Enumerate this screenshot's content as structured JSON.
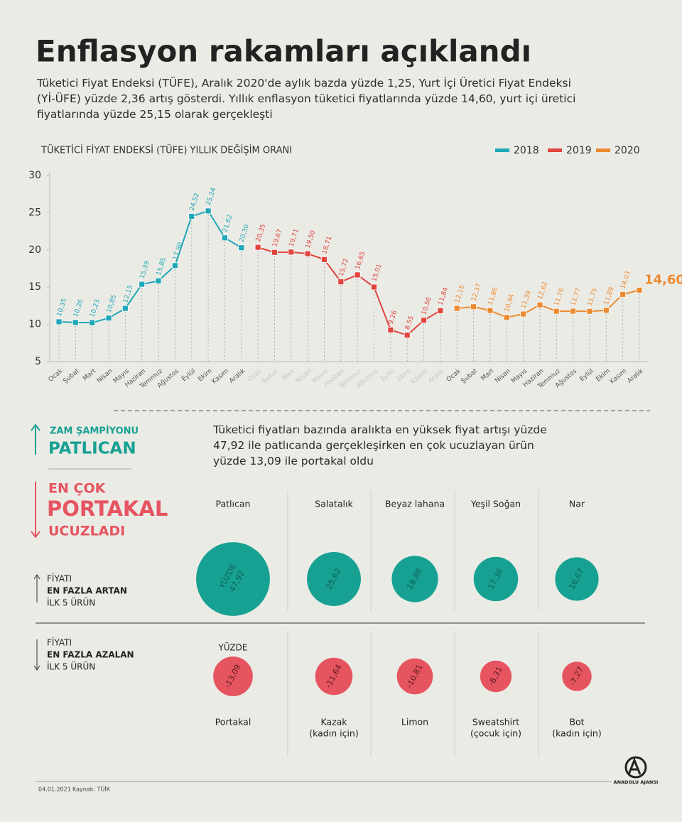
{
  "title": "Enflasyon rakamları açıklandı",
  "intro": "Tüketici Fiyat Endeksi (TÜFE), Aralık 2020'de aylık bazda yüzde 1,25, Yurt İçi Üretici Fiyat Endeksi (Yİ-ÜFE) yüzde 2,36 artış gösterdi. Yıllık enflasyon tüketici fiyatlarında yüzde 14,60, yurt içi üretici fiyatlarında yüzde 25,15 olarak gerçekleşti",
  "chart_data": {
    "type": "line",
    "title": "TÜKETİCİ FİYAT ENDEKSİ (TÜFE) YILLIK DEĞİŞİM ORANI",
    "categories": [
      "Ocak",
      "Şubat",
      "Mart",
      "Nisan",
      "Mayıs",
      "Haziran",
      "Temmuz",
      "Ağustos",
      "Eylül",
      "Ekim",
      "Kasım",
      "Aralık",
      "Ocak",
      "Şubat",
      "Mart",
      "Nisan",
      "Mayıs",
      "Haziran",
      "Temmuz",
      "Ağustos",
      "Eylül",
      "Ekim",
      "Kasım",
      "Aralık",
      "Ocak",
      "Şubat",
      "Mart",
      "Nisan",
      "Mayıs",
      "Haziran",
      "Temmuz",
      "Ağustos",
      "Eylül",
      "Ekim",
      "Kasım",
      "Aralık"
    ],
    "series": [
      {
        "name": "2018",
        "color": "#1ea7b8",
        "values": [
          10.35,
          10.26,
          10.23,
          10.85,
          12.15,
          15.39,
          15.85,
          17.9,
          24.52,
          25.24,
          21.62,
          20.3,
          null,
          null,
          null,
          null,
          null,
          null,
          null,
          null,
          null,
          null,
          null,
          null,
          null,
          null,
          null,
          null,
          null,
          null,
          null,
          null,
          null,
          null,
          null,
          null
        ],
        "value_labels": [
          "10,35",
          "10,26",
          "10,23",
          "10,85",
          "12,15",
          "15,39",
          "15,85",
          "17,90",
          "24,52",
          "25,24",
          "21,62",
          "20,30",
          null,
          null,
          null,
          null,
          null,
          null,
          null,
          null,
          null,
          null,
          null,
          null,
          null,
          null,
          null,
          null,
          null,
          null,
          null,
          null,
          null,
          null,
          null,
          null
        ]
      },
      {
        "name": "2019",
        "color": "#e0443c",
        "values": [
          null,
          null,
          null,
          null,
          null,
          null,
          null,
          null,
          null,
          null,
          null,
          null,
          20.35,
          19.67,
          19.71,
          19.5,
          18.71,
          15.72,
          16.65,
          15.01,
          9.26,
          8.55,
          10.56,
          11.84,
          null,
          null,
          null,
          null,
          null,
          null,
          null,
          null,
          null,
          null,
          null,
          null
        ],
        "value_labels": [
          null,
          null,
          null,
          null,
          null,
          null,
          null,
          null,
          null,
          null,
          null,
          null,
          "20,35",
          "19,67",
          "19,71",
          "19,50",
          "18,71",
          "15,72",
          "16,65",
          "15,01",
          "9,26",
          "8,55",
          "10,56",
          "11,84",
          null,
          null,
          null,
          null,
          null,
          null,
          null,
          null,
          null,
          null,
          null,
          null
        ]
      },
      {
        "name": "2020",
        "color": "#ec8a2f",
        "values": [
          null,
          null,
          null,
          null,
          null,
          null,
          null,
          null,
          null,
          null,
          null,
          null,
          null,
          null,
          null,
          null,
          null,
          null,
          null,
          null,
          null,
          null,
          null,
          null,
          12.15,
          12.37,
          11.86,
          10.94,
          11.39,
          12.62,
          11.76,
          11.77,
          11.75,
          11.89,
          14.03,
          14.6
        ],
        "value_labels": [
          null,
          null,
          null,
          null,
          null,
          null,
          null,
          null,
          null,
          null,
          null,
          null,
          null,
          null,
          null,
          null,
          null,
          null,
          null,
          null,
          null,
          null,
          null,
          null,
          "12,15",
          "12,37",
          "11,86",
          "10,94",
          "11,39",
          "12,62",
          "11,76",
          "11,77",
          "11,75",
          "11,89",
          "14,03",
          "14,60"
        ]
      }
    ],
    "ylim": [
      5,
      30
    ],
    "yticks": [
      5,
      10,
      15,
      20,
      25,
      30
    ],
    "legend": "top-right"
  },
  "highlights": {
    "up_label": "ZAM ŞAMPİYONU",
    "up_product": "PATLICAN",
    "down_label_top": "EN ÇOK",
    "down_product": "PORTAKAL",
    "down_label_bottom": "UCUZLADI",
    "description": "Tüketici fiyatları bazında aralıkta en yüksek fiyat artışı yüzde 47,92 ile patlıcanda gerçekleşirken en çok ucuzlayan ürün yüzde 13,09 ile portakal oldu"
  },
  "increase": {
    "color": "#17a192",
    "heading": [
      "FİYATI",
      "EN FAZLA ARTAN",
      "İLK 5 ÜRÜN"
    ],
    "unit": "YÜZDE",
    "items": [
      {
        "name": "Patlıcan",
        "value": 47.92,
        "value_label": "47,92"
      },
      {
        "name": "Salatalık",
        "value": 25.62,
        "value_label": "25,62"
      },
      {
        "name": "Beyaz lahana",
        "value": 18.88,
        "value_label": "18,88"
      },
      {
        "name": "Yeşil Soğan",
        "value": 17.36,
        "value_label": "17,36"
      },
      {
        "name": "Nar",
        "value": 16.67,
        "value_label": "16,67"
      }
    ]
  },
  "decrease": {
    "color": "#e65460",
    "heading": [
      "FİYATI",
      "EN FAZLA AZALAN",
      "İLK 5 ÜRÜN"
    ],
    "unit": "YÜZDE",
    "items": [
      {
        "name": "Portakal",
        "note": null,
        "value": -13.09,
        "value_label": "-13,09"
      },
      {
        "name": "Kazak",
        "note": "(kadın için)",
        "value": -11.64,
        "value_label": "-11,64"
      },
      {
        "name": "Limon",
        "note": null,
        "value": -10.81,
        "value_label": "-10,81"
      },
      {
        "name": "Sweatshirt",
        "note": "(çocuk için)",
        "value": -8.31,
        "value_label": "-8,31"
      },
      {
        "name": "Bot",
        "note": "(kadın için)",
        "value": -7.27,
        "value_label": "-7,27"
      }
    ]
  },
  "footer": {
    "date": "04.01.2021",
    "source": "Kaynak: TÜİK",
    "agency": "ANADOLU AJANSI"
  }
}
